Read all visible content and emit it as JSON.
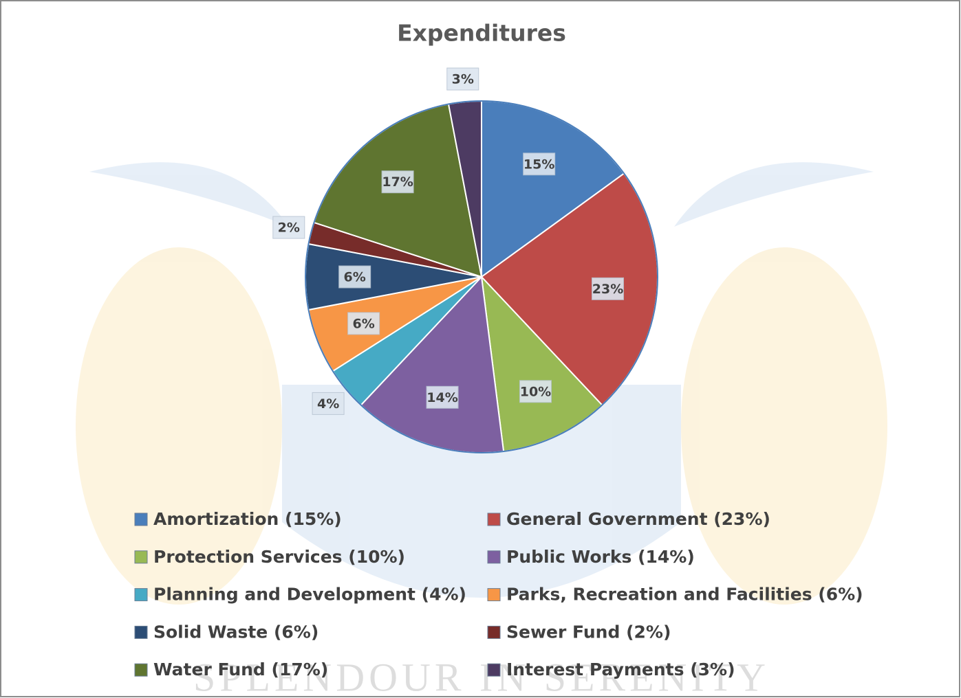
{
  "chart_data": {
    "type": "pie",
    "title": "Expenditures",
    "categories": [
      "Amortization (15%)",
      "General Government (23%)",
      "Protection Services (10%)",
      "Public Works (14%)",
      "Planning and Development (4%)",
      "Parks, Recreation and Facilities (6%)",
      "Solid Waste (6%)",
      "Sewer Fund (2%)",
      "Water Fund (17%)",
      "Interest Payments (3%)"
    ],
    "values": [
      15,
      23,
      10,
      14,
      4,
      6,
      6,
      2,
      17,
      3
    ],
    "value_labels": [
      "15%",
      "23%",
      "10%",
      "14%",
      "4%",
      "6%",
      "6%",
      "2%",
      "17%",
      "3%"
    ],
    "colors": [
      "#4a7ebb",
      "#be4b48",
      "#98b954",
      "#7d60a0",
      "#46aac5",
      "#f79646",
      "#2c4d75",
      "#772c2a",
      "#5f7530",
      "#4d3b62"
    ],
    "watermark": "SPLENDOUR IN SERENITY"
  }
}
